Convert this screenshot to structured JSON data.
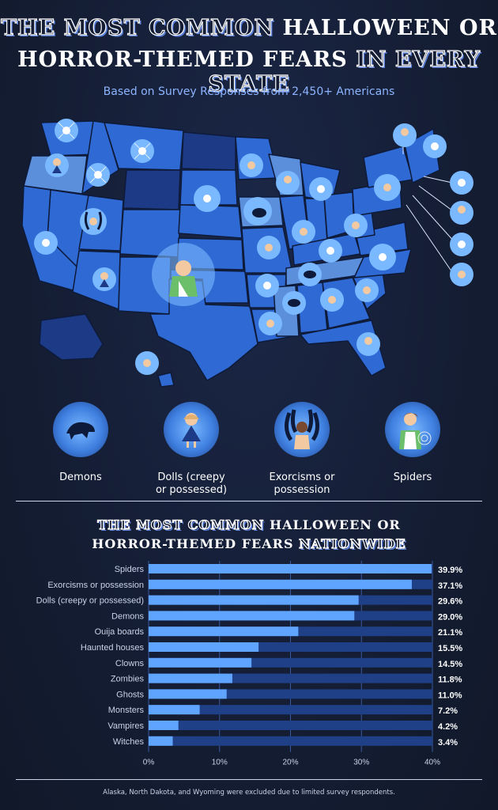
{
  "header": {
    "title_line1_outline": "THE MOST COMMON",
    "title_line1_solid": "HALLOWEEN OR",
    "title_line2_solid": "HORROR-THEMED FEARS",
    "title_line2_outline": "IN EVERY STATE",
    "subtitle": "Based on Survey Responses from 2,450+ Americans"
  },
  "legend": [
    {
      "label_line1": "Demons",
      "label_line2": "",
      "icon": "demon-icon"
    },
    {
      "label_line1": "Dolls (creepy",
      "label_line2": "or possessed)",
      "icon": "doll-icon"
    },
    {
      "label_line1": "Exorcisms or",
      "label_line2": "possession",
      "icon": "exorcism-icon"
    },
    {
      "label_line1": "Spiders",
      "label_line2": "",
      "icon": "spider-icon"
    }
  ],
  "colors": {
    "background": "#141d33",
    "bar": "#5fa4ff",
    "track": "#1f3f86",
    "state_dark": "#1c3a86",
    "state_mid": "#2f6ad4",
    "state_light": "#5b8fdc"
  },
  "chart_heading": {
    "line1_outline": "THE MOST COMMON",
    "line1_solid": "HALLOWEEN OR",
    "line2_solid": "HORROR-THEMED FEARS",
    "line2_outline": "NATIONWIDE"
  },
  "chart_data": {
    "type": "bar",
    "orientation": "horizontal",
    "categories": [
      "Spiders",
      "Exorcisms or possession",
      "Dolls (creepy or possessed)",
      "Demons",
      "Ouija boards",
      "Haunted houses",
      "Clowns",
      "Zombies",
      "Ghosts",
      "Monsters",
      "Vampires",
      "Witches"
    ],
    "values": [
      39.9,
      37.1,
      29.6,
      29.0,
      21.1,
      15.5,
      14.5,
      11.8,
      11.0,
      7.2,
      4.2,
      3.4
    ],
    "value_labels": [
      "39.9%",
      "37.1%",
      "29.6%",
      "29.0%",
      "21.1%",
      "15.5%",
      "14.5%",
      "11.8%",
      "11.0%",
      "7.2%",
      "4.2%",
      "3.4%"
    ],
    "xlim": [
      0,
      40
    ],
    "xticks": [
      "0%",
      "10%",
      "20%",
      "30%",
      "40%"
    ],
    "grid": true
  },
  "footnote": "Alaska, North Dakota, and Wyoming were excluded due to limited survey respondents."
}
